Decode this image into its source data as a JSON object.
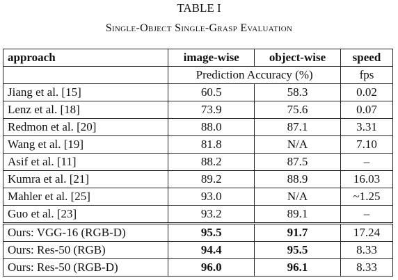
{
  "table": {
    "label": "TABLE I",
    "caption": "Single-Object Single-Grasp Evaluation",
    "headers": [
      "approach",
      "image-wise",
      "object-wise",
      "speed"
    ],
    "subheaders": {
      "accuracy": "Prediction Accuracy (%)",
      "speed": "fps"
    },
    "rows": [
      {
        "approach": "Jiang et al. [15]",
        "image": "60.5",
        "object": "58.3",
        "speed": "0.02"
      },
      {
        "approach": "Lenz et al. [18]",
        "image": "73.9",
        "object": "75.6",
        "speed": "0.07"
      },
      {
        "approach": "Redmon et al. [20]",
        "image": "88.0",
        "object": "87.1",
        "speed": "3.31"
      },
      {
        "approach": "Wang et al. [19]",
        "image": "81.8",
        "object": "N/A",
        "speed": "7.10"
      },
      {
        "approach": "Asif et al. [11]",
        "image": "88.2",
        "object": "87.5",
        "speed": "–"
      },
      {
        "approach": "Kumra et al. [21]",
        "image": "89.2",
        "object": "88.9",
        "speed": "16.03"
      },
      {
        "approach": "Mahler et al. [25]",
        "image": "93.0",
        "object": "N/A",
        "speed": "~1.25"
      },
      {
        "approach": "Guo et al. [23]",
        "image": "93.2",
        "object": "89.1",
        "speed": "–"
      }
    ],
    "ours": [
      {
        "approach": "Ours: VGG-16 (RGB-D)",
        "image": "95.5",
        "object": "91.7",
        "speed": "17.24"
      },
      {
        "approach": "Ours: Res-50 (RGB)",
        "image": "94.4",
        "object": "95.5",
        "speed": "8.33"
      },
      {
        "approach": "Ours: Res-50 (RGB-D)",
        "image": "96.0",
        "object": "96.1",
        "speed": "8.33"
      }
    ]
  }
}
